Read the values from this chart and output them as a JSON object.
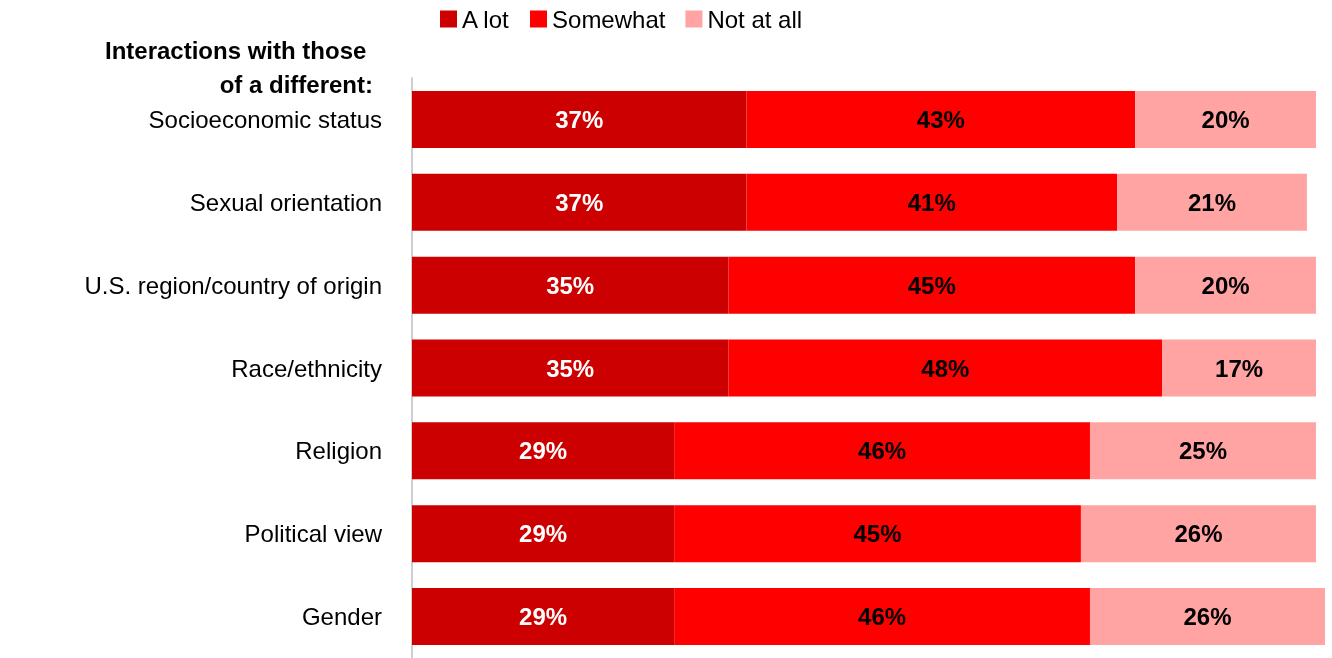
{
  "chart_data": {
    "type": "bar",
    "orientation": "horizontal",
    "stacked": true,
    "title": "Interactions with those of a different:",
    "categories": [
      "Socioeconomic status",
      "Sexual orientation",
      "U.S. region/country of origin",
      "Race/ethnicity",
      "Religion",
      "Political view",
      "Gender"
    ],
    "series": [
      {
        "name": "A lot",
        "color": "#cc0000",
        "values": [
          37,
          37,
          35,
          35,
          29,
          29,
          29
        ],
        "value_labels": [
          "37%",
          "37%",
          "35%",
          "35%",
          "29%",
          "29%",
          "29%"
        ]
      },
      {
        "name": "Somewhat",
        "color": "#ff0000",
        "values": [
          43,
          41,
          45,
          48,
          46,
          45,
          46
        ],
        "value_labels": [
          "43%",
          "41%",
          "45%",
          "48%",
          "46%",
          "45%",
          "46%"
        ]
      },
      {
        "name": "Not at all",
        "color": "#ffa3a3",
        "values": [
          20,
          21,
          20,
          17,
          25,
          26,
          26
        ],
        "value_labels": [
          "20%",
          "21%",
          "20%",
          "17%",
          "25%",
          "26%",
          "26%"
        ]
      }
    ],
    "legend": "top"
  }
}
